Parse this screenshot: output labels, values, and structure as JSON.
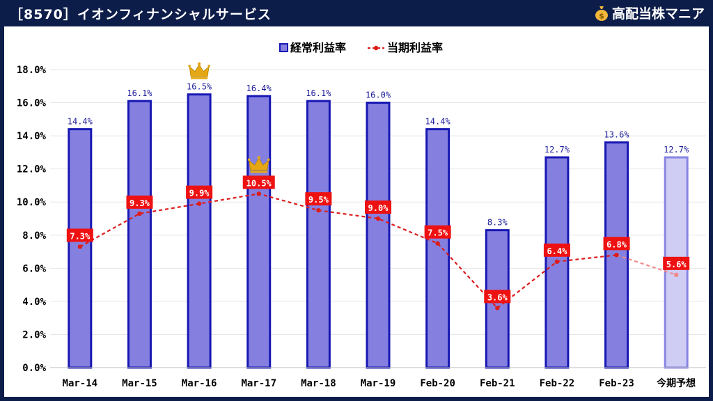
{
  "header": {
    "title": "［8570］イオンフィナンシャルサービス",
    "brand": "高配当株マニア"
  },
  "chart_data": {
    "type": "bar",
    "categories": [
      "Mar-14",
      "Mar-15",
      "Mar-16",
      "Mar-17",
      "Mar-18",
      "Mar-19",
      "Feb-20",
      "Feb-21",
      "Feb-22",
      "Feb-23",
      "今期予想"
    ],
    "series": [
      {
        "name": "経常利益率",
        "type": "bar",
        "values": [
          14.4,
          16.1,
          16.5,
          16.4,
          16.1,
          16.0,
          14.4,
          8.3,
          12.7,
          13.6,
          12.7
        ],
        "labels": [
          "14.4%",
          "16.1%",
          "16.5%",
          "16.4%",
          "16.1%",
          "16.0%",
          "14.4%",
          "8.3%",
          "12.7%",
          "13.6%",
          "12.7%"
        ]
      },
      {
        "name": "当期利益率",
        "type": "line",
        "values": [
          7.3,
          9.3,
          9.9,
          10.5,
          9.5,
          9.0,
          7.5,
          3.6,
          6.4,
          6.8,
          5.6
        ],
        "labels": [
          "7.3%",
          "9.3%",
          "9.9%",
          "10.5%",
          "9.5%",
          "9.0%",
          "7.5%",
          "3.6%",
          "6.4%",
          "6.8%",
          "5.6%"
        ]
      }
    ],
    "ylim": [
      0,
      18
    ],
    "yticks": [
      "0.0%",
      "2.0%",
      "4.0%",
      "6.0%",
      "8.0%",
      "10.0%",
      "12.0%",
      "14.0%",
      "16.0%",
      "18.0%"
    ],
    "legend": "top-center",
    "grid": true,
    "forecast_index": 10,
    "crowns": [
      {
        "series": 0,
        "index": 2
      },
      {
        "series": 1,
        "index": 3
      }
    ],
    "colors": {
      "bar_fill": "#8580e0",
      "bar_stroke": "#1717b3",
      "forecast_fill": "#cfcdf4",
      "forecast_stroke": "#8884e3",
      "line": "#dd1c1c",
      "label_bg": "#ee1111",
      "label_text": "#ffffff",
      "bar_label": "#1a1a99",
      "crown": "#e5a814",
      "background": "#0d1d4a"
    }
  }
}
